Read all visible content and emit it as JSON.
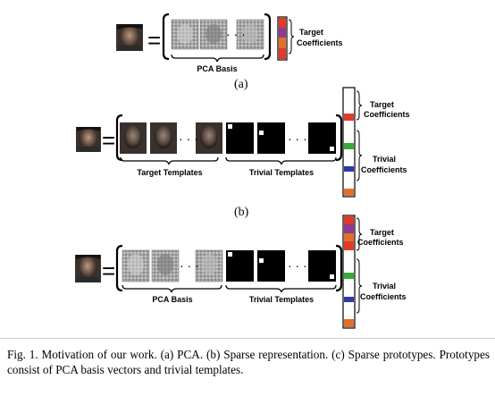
{
  "panels": {
    "a": {
      "tag": "(a)",
      "basis_label": "PCA Basis",
      "coef_label": [
        "Target",
        "Coefficients"
      ],
      "dots": "· · ·",
      "equals": "="
    },
    "b": {
      "tag": "(b)",
      "target_label": "Target Templates",
      "trivial_label": "Trivial Templates",
      "target_coef_label": [
        "Target",
        "Coefficients"
      ],
      "trivial_coef_label": [
        "Trivial",
        "Coefficients"
      ],
      "dots": "· · ·",
      "equals": "="
    },
    "c": {
      "basis_label": "PCA Basis",
      "trivial_label": "Trivial Templates",
      "target_coef_label": [
        "Target",
        "Coefficients"
      ],
      "trivial_coef_label": [
        "Trivial",
        "Coefficients"
      ],
      "dots": "· · ·",
      "equals": "="
    }
  },
  "colors": {
    "coef_red": "#e03a2a",
    "coef_purple": "#8e3a8e",
    "coef_orange": "#e0702a",
    "coef_green": "#3aa83a",
    "coef_blue": "#2a3aa8"
  },
  "caption": "Fig. 1.   Motivation of our work. (a) PCA. (b) Sparse representation. (c) Sparse prototypes. Prototypes consist of PCA basis vectors and trivial templates."
}
